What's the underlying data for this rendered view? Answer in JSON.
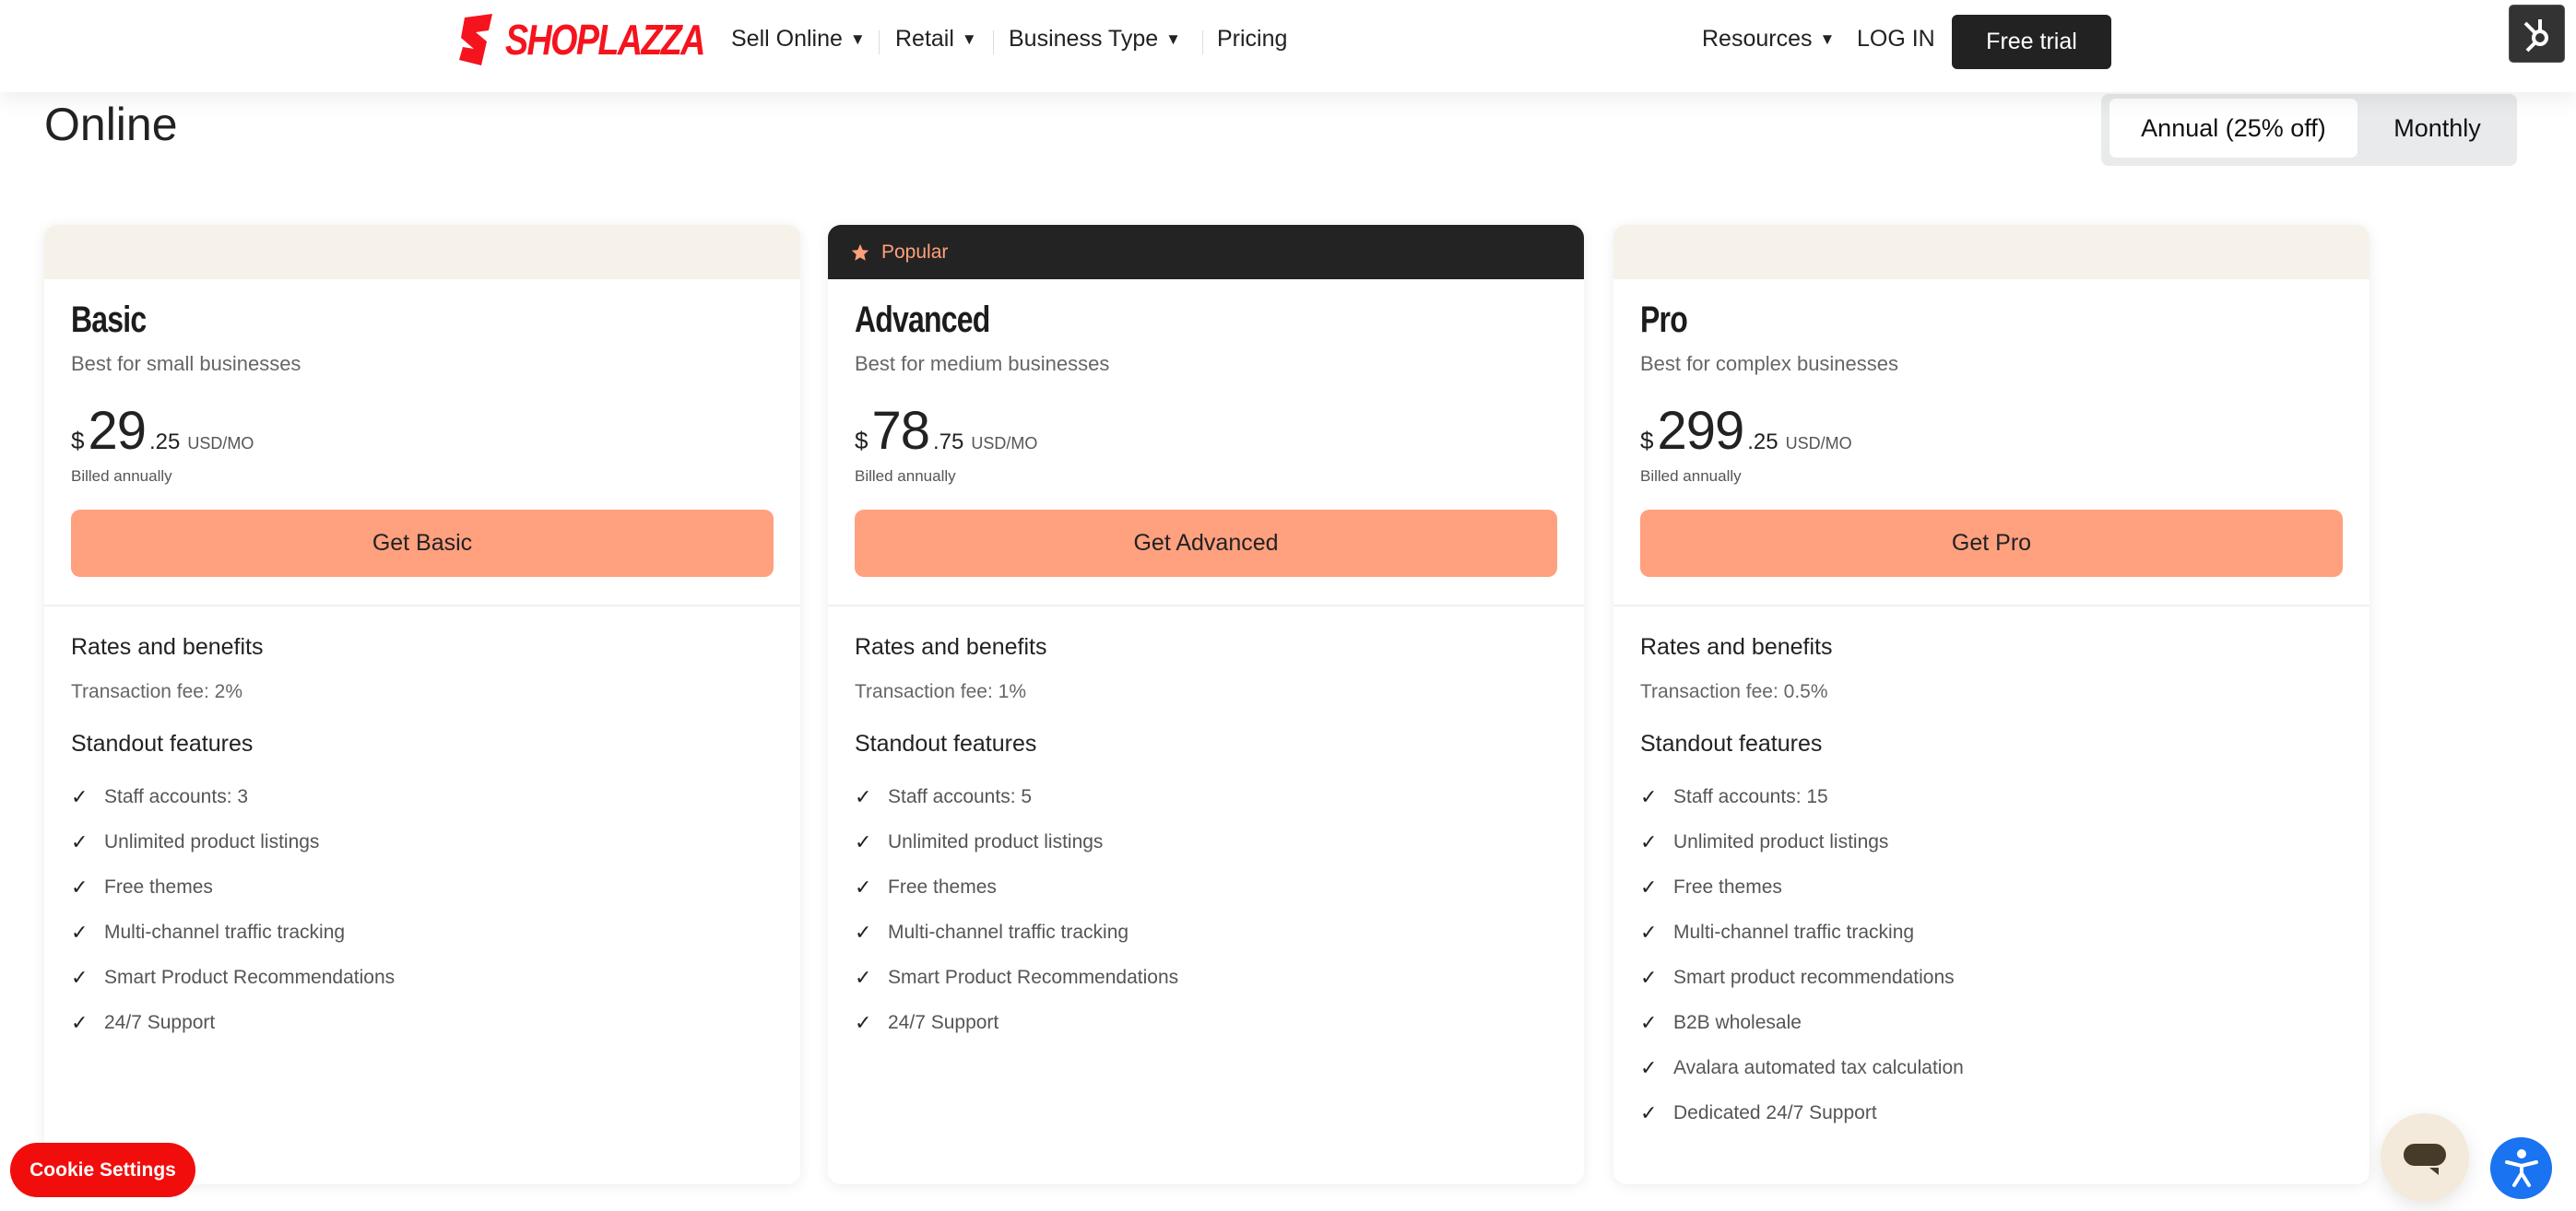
{
  "header": {
    "logo_text": "SHOPLAZZA",
    "nav": [
      {
        "label": "Sell Online",
        "dropdown": true
      },
      {
        "label": "Retail",
        "dropdown": true
      },
      {
        "label": "Business Type",
        "dropdown": true
      },
      {
        "label": "Pricing",
        "dropdown": false
      }
    ],
    "resources": "Resources",
    "login": "LOG IN",
    "free_trial": "Free trial"
  },
  "page": {
    "title": "Online",
    "billing_toggle": {
      "options": [
        "Annual (25% off)",
        "Monthly"
      ],
      "selected": "Annual (25% off)"
    }
  },
  "plans": [
    {
      "badge": "",
      "name": "Basic",
      "subtitle": "Best for small businesses",
      "currency": "$",
      "price_whole": "29",
      "price_cents": ".25",
      "unit": "USD/MO",
      "billed": "Billed annually",
      "cta": "Get Basic",
      "rates_heading": "Rates and benefits",
      "fee": "Transaction fee: 2%",
      "features_heading": "Standout features",
      "features": [
        "Staff accounts: 3",
        "Unlimited product listings",
        "Free themes",
        "Multi-channel traffic tracking",
        "Smart Product Recommendations",
        "24/7 Support"
      ]
    },
    {
      "badge": "Popular",
      "name": "Advanced",
      "subtitle": "Best for medium businesses",
      "currency": "$",
      "price_whole": "78",
      "price_cents": ".75",
      "unit": "USD/MO",
      "billed": "Billed annually",
      "cta": "Get Advanced",
      "rates_heading": "Rates and benefits",
      "fee": "Transaction fee: 1%",
      "features_heading": "Standout features",
      "features": [
        "Staff accounts: 5",
        "Unlimited product listings",
        "Free themes",
        "Multi-channel traffic tracking",
        "Smart Product Recommendations",
        "24/7 Support"
      ]
    },
    {
      "badge": "",
      "name": "Pro",
      "subtitle": "Best for complex businesses",
      "currency": "$",
      "price_whole": "299",
      "price_cents": ".25",
      "unit": "USD/MO",
      "billed": "Billed annually",
      "cta": "Get Pro",
      "rates_heading": "Rates and benefits",
      "fee": "Transaction fee: 0.5%",
      "features_heading": "Standout features",
      "features": [
        "Staff accounts: 15",
        "Unlimited product listings",
        "Free themes",
        "Multi-channel traffic tracking",
        "Smart product recommendations",
        "B2B wholesale",
        "Avalara automated tax calculation",
        "Dedicated 24/7 Support"
      ]
    }
  ],
  "widgets": {
    "cookie_settings": "Cookie Settings",
    "chat_icon": "chat-bubble-icon",
    "accessibility_icon": "accessibility-icon"
  },
  "colors": {
    "brand_red": "#f5141e",
    "cta": "#ffa07f",
    "dark": "#232323",
    "accessibility": "#1a73f0"
  }
}
